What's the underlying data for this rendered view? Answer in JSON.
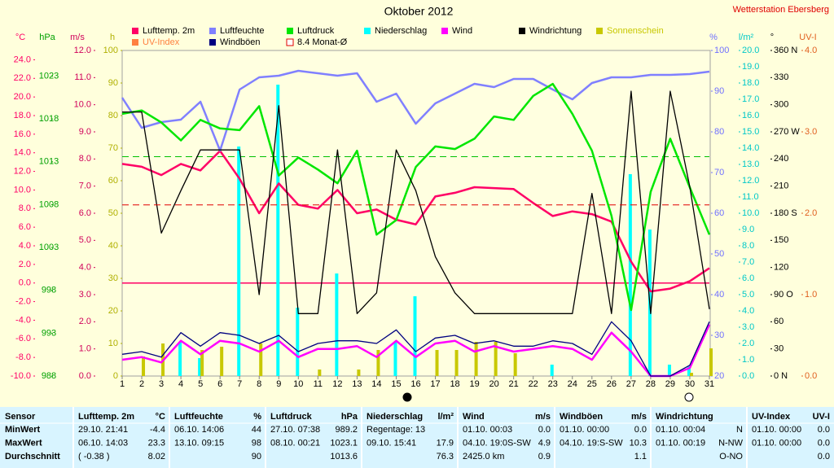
{
  "chart_data": {
    "type": "line",
    "title": "Oktober 2012",
    "subtitle": "Wetterstation Ebersberg",
    "x": [
      1,
      2,
      3,
      4,
      5,
      6,
      7,
      8,
      9,
      10,
      11,
      12,
      13,
      14,
      15,
      16,
      17,
      18,
      19,
      20,
      21,
      22,
      23,
      24,
      25,
      26,
      27,
      28,
      29,
      30,
      31
    ],
    "xlim": [
      1,
      31
    ],
    "zero_line": true,
    "axes": {
      "y": {
        "label": "°C",
        "color": "#ff0066",
        "lim": [
          -10,
          25
        ],
        "ticks": [
          {
            "value": -10,
            "label": "-10.0"
          },
          {
            "value": -8,
            "label": "-8.0"
          },
          {
            "value": -6,
            "label": "-6.0"
          },
          {
            "value": -4,
            "label": "-4.0"
          },
          {
            "value": -2,
            "label": "-2.0"
          },
          {
            "value": 0,
            "label": "0.0"
          },
          {
            "value": 2,
            "label": "2.0"
          },
          {
            "value": 4,
            "label": "4.0"
          },
          {
            "value": 6,
            "label": "6.0"
          },
          {
            "value": 8,
            "label": "8.0"
          },
          {
            "value": 10,
            "label": "10.0"
          },
          {
            "value": 12,
            "label": "12.0"
          },
          {
            "value": 14,
            "label": "14.0"
          },
          {
            "value": 16,
            "label": "16.0"
          },
          {
            "value": 18,
            "label": "18.0"
          },
          {
            "value": 20,
            "label": "20.0"
          },
          {
            "value": 22,
            "label": "22.0"
          },
          {
            "value": 24,
            "label": "24.0"
          }
        ]
      },
      "y2": {
        "label": "hPa",
        "color": "#00a000",
        "lim": [
          988,
          1026
        ],
        "ticks": [
          988,
          993,
          998,
          1003,
          1008,
          1013,
          1018,
          1023
        ]
      },
      "y3": {
        "label": "m/s",
        "color": "#d0005a",
        "lim": [
          0,
          12
        ],
        "ticks": [
          {
            "value": 0,
            "label": "0.0"
          },
          {
            "value": 1,
            "label": "1.0"
          },
          {
            "value": 2,
            "label": "2.0"
          },
          {
            "value": 3,
            "label": "3.0"
          },
          {
            "value": 4,
            "label": "4.0"
          },
          {
            "value": 5,
            "label": "5.0"
          },
          {
            "value": 6,
            "label": "6.0"
          },
          {
            "value": 7,
            "label": "7.0"
          },
          {
            "value": 8,
            "label": "8.0"
          },
          {
            "value": 9,
            "label": "9.0"
          },
          {
            "value": 10,
            "label": "10.0"
          },
          {
            "value": 11,
            "label": "11.0"
          },
          {
            "value": 12,
            "label": "12.0"
          }
        ]
      },
      "y4": {
        "label": "h",
        "color": "#b0b000",
        "lim": [
          0,
          100
        ],
        "ticks": [
          0,
          10,
          20,
          30,
          40,
          50,
          60,
          70,
          80,
          90,
          100
        ]
      },
      "y5": {
        "label": "%",
        "color": "#7070ff",
        "lim": [
          20,
          100
        ],
        "ticks": [
          20,
          30,
          40,
          50,
          60,
          70,
          80,
          90,
          100
        ]
      },
      "y6": {
        "label": "l/m²",
        "color": "#00c8c8",
        "lim": [
          0,
          20
        ],
        "ticks": [
          {
            "value": 0,
            "label": "0.0"
          },
          {
            "value": 1,
            "label": "1.0"
          },
          {
            "value": 2,
            "label": "2.0"
          },
          {
            "value": 3,
            "label": "3.0"
          },
          {
            "value": 4,
            "label": "4.0"
          },
          {
            "value": 5,
            "label": "5.0"
          },
          {
            "value": 6,
            "label": "6.0"
          },
          {
            "value": 7,
            "label": "7.0"
          },
          {
            "value": 8,
            "label": "8.0"
          },
          {
            "value": 9,
            "label": "9.0"
          },
          {
            "value": 10,
            "label": "10.0"
          },
          {
            "value": 11,
            "label": "11.0"
          },
          {
            "value": 12,
            "label": "12.0"
          },
          {
            "value": 13,
            "label": "13.0"
          },
          {
            "value": 14,
            "label": "14.0"
          },
          {
            "value": 15,
            "label": "15.0"
          },
          {
            "value": 16,
            "label": "16.0"
          },
          {
            "value": 17,
            "label": "17.0"
          },
          {
            "value": 18,
            "label": "18.0"
          },
          {
            "value": 19,
            "label": "19.0"
          },
          {
            "value": 20,
            "label": "20.0"
          }
        ]
      },
      "y7": {
        "label": "°",
        "color": "#000000",
        "lim": [
          0,
          360
        ],
        "ticks": [
          {
            "value": 0,
            "label": "0   N"
          },
          30,
          60,
          {
            "value": 90,
            "label": "90   O"
          },
          120,
          150,
          {
            "value": 180,
            "label": "180 S"
          },
          210,
          240,
          {
            "value": 270,
            "label": "270 W"
          },
          300,
          330,
          {
            "value": 360,
            "label": "360 N"
          }
        ]
      },
      "y8": {
        "label": "UV-I",
        "color": "#e06020",
        "lim": [
          0,
          4
        ],
        "ticks": [
          {
            "value": 0,
            "label": "0.0"
          },
          {
            "value": 1,
            "label": "1.0"
          },
          {
            "value": 2,
            "label": "2.0"
          },
          {
            "value": 3,
            "label": "3.0"
          },
          {
            "value": 4,
            "label": "4.0"
          }
        ]
      }
    },
    "series": [
      {
        "name": "Lufttemp. 2m",
        "color": "#ff0066",
        "axis": "y",
        "kind": "line",
        "values": [
          12.8,
          12.5,
          11.6,
          12.8,
          12.1,
          14.2,
          11.2,
          7.5,
          10.7,
          8.4,
          8.0,
          10.0,
          7.5,
          7.9,
          6.8,
          6.3,
          9.3,
          9.7,
          10.3,
          10.2,
          10.1,
          8.6,
          7.2,
          7.7,
          7.4,
          6.6,
          2.3,
          -0.9,
          -0.6,
          0.2,
          1.6
        ]
      },
      {
        "name": "Luftfeuchte",
        "color": "#8080ff",
        "axis": "y5",
        "kind": "line",
        "values": [
          88.4,
          81,
          82.4,
          83,
          87.4,
          75.4,
          90.4,
          93.4,
          93.8,
          95,
          94.4,
          93.8,
          94.4,
          87.4,
          89.4,
          82,
          87,
          89.4,
          91.8,
          91,
          93,
          93,
          90.4,
          88,
          92,
          93.4,
          93.4,
          94,
          94,
          94.2,
          94.8
        ]
      },
      {
        "name": "Luftdruck",
        "color": "#00e600",
        "axis": "y2",
        "kind": "line",
        "values": [
          1018.6,
          1019.0,
          1017.6,
          1015.5,
          1017.9,
          1016.9,
          1016.7,
          1019.5,
          1011.4,
          1013.5,
          1012.1,
          1010.5,
          1014.3,
          1004.5,
          1006.2,
          1012.4,
          1014.8,
          1014.5,
          1015.7,
          1018.3,
          1017.9,
          1020.7,
          1022.1,
          1018.6,
          1014.3,
          1006.7,
          995.7,
          1009.5,
          1015.7,
          1010.0,
          1004.5
        ]
      },
      {
        "name": "Niederschlag",
        "color": "#00ffff",
        "axis": "y6",
        "kind": "bar",
        "values": [
          0,
          0,
          0,
          2.1,
          1.1,
          0,
          14.1,
          0,
          17.9,
          4.2,
          0,
          6.3,
          0,
          0,
          2.1,
          4.9,
          0,
          0,
          0,
          0,
          0,
          0,
          0.7,
          0,
          0,
          0,
          12.4,
          9.0,
          0.7,
          0.6,
          0
        ]
      },
      {
        "name": "Wind",
        "color": "#ff00ff",
        "axis": "y3",
        "kind": "line",
        "values": [
          0.6,
          0.7,
          0.5,
          1.3,
          0.8,
          1.3,
          1.2,
          0.9,
          1.3,
          0.7,
          1.0,
          1.0,
          1.1,
          0.7,
          1.3,
          0.7,
          1.2,
          1.3,
          0.9,
          1.1,
          0.9,
          1.0,
          1.1,
          1.0,
          0.6,
          1.6,
          0.9,
          0,
          0,
          0.3,
          1.9
        ]
      },
      {
        "name": "Windrichtung",
        "color": "#000000",
        "axis": "y7",
        "kind": "line",
        "style": "thin",
        "values": [
          292,
          292,
          158,
          205,
          250,
          250,
          250,
          90,
          299,
          69,
          69,
          250,
          69,
          92,
          250,
          205,
          132,
          92,
          69,
          69,
          69,
          69,
          69,
          69,
          202,
          69,
          315,
          69,
          315,
          209,
          74
        ]
      },
      {
        "name": "Sonnenschein",
        "color": "#c8c800",
        "axis": "y4",
        "kind": "bar",
        "label_colored": true,
        "values": [
          0,
          6,
          10,
          0,
          8,
          9,
          0,
          10,
          0,
          0,
          2,
          0,
          2,
          8,
          0,
          0,
          8,
          8,
          10.5,
          10.5,
          7,
          0,
          0,
          0,
          0,
          0,
          0,
          0,
          0,
          1,
          8.5
        ]
      },
      {
        "name": "UV-Index",
        "color": "#ff8040",
        "axis": "y8",
        "kind": "legend",
        "label_colored": true
      },
      {
        "name": "Windböen",
        "color": "#000080",
        "axis": "y3",
        "kind": "line",
        "style": "thin",
        "values": [
          0.8,
          0.9,
          0.7,
          1.6,
          1.1,
          1.6,
          1.5,
          1.2,
          1.5,
          0.9,
          1.2,
          1.3,
          1.3,
          1.2,
          1.7,
          0.9,
          1.4,
          1.5,
          1.2,
          1.3,
          1.1,
          1.1,
          1.3,
          1.2,
          0.8,
          2.0,
          1.3,
          0,
          0,
          0.4,
          2.0
        ]
      },
      {
        "name": "8.4 Monat-Ø",
        "color": "#e00000",
        "axis": "y",
        "kind": "reference",
        "value": 8.4
      }
    ],
    "reference_lines": [
      {
        "axis": "y2",
        "value": 1013.6,
        "color": "#00c000"
      }
    ]
  },
  "table": {
    "header": [
      {
        "name": "Sensor"
      },
      {
        "name": "Lufttemp. 2m",
        "unit": "°C"
      },
      {
        "name": "Luftfeuchte",
        "unit": "%"
      },
      {
        "name": "Luftdruck",
        "unit": "hPa"
      },
      {
        "name": "Niederschlag",
        "unit": "l/m²"
      },
      {
        "name": "Wind",
        "unit": "m/s"
      },
      {
        "name": "Windböen",
        "unit": "m/s"
      },
      {
        "name": "Windrichtung"
      },
      {
        "name": "UV-Index",
        "unit": "UV-I"
      }
    ],
    "rows": [
      {
        "label": "MinWert",
        "cells": [
          {
            "text": "29.10.  21:41",
            "value": "-4.4"
          },
          {
            "text": "06.10.  14:06",
            "value": "44"
          },
          {
            "text": "27.10.  07:38",
            "value": "989.2"
          },
          {
            "text": "Regentage: 13"
          },
          {
            "text": "01.10.  00:03",
            "value": "0.0"
          },
          {
            "text": "01.10.  00:00",
            "value": "0.0"
          },
          {
            "text": "01.10.  00:04",
            "value": "N"
          },
          {
            "text": "01.10.  00:00",
            "value": "0.0"
          }
        ]
      },
      {
        "label": "MaxWert",
        "cells": [
          {
            "text": "06.10.  14:03",
            "value": "23.3"
          },
          {
            "text": "13.10.  09:15",
            "value": "98"
          },
          {
            "text": "08.10.  00:21",
            "value": "1023.1"
          },
          {
            "text": "09.10.  15:41",
            "value": "17.9"
          },
          {
            "text": "04.10.  19:0S-SW",
            "value": "4.9"
          },
          {
            "text": "04.10.  19:S-SW",
            "value": "10.3"
          },
          {
            "text": "01.10.  00:19",
            "value": "N-NW"
          },
          {
            "text": "01.10.  00:00",
            "value": "0.0"
          }
        ]
      },
      {
        "label": "Durchschnitt",
        "cells": [
          {
            "text": "( -0.38 )",
            "value": "8.02"
          },
          {
            "value": "90"
          },
          {
            "value": "1013.6"
          },
          {
            "value": "76.3"
          },
          {
            "text": "2425.0 km",
            "value": "0.9"
          },
          {
            "value": "1.1"
          },
          {
            "value": "O-NO"
          },
          {
            "value": "0.0"
          }
        ]
      }
    ]
  }
}
